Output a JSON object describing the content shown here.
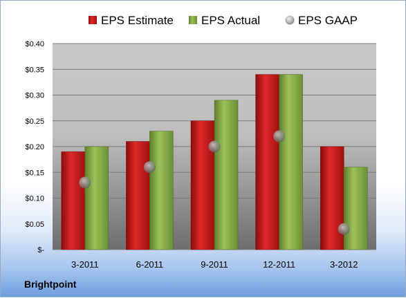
{
  "company": "Brightpoint",
  "chart_data": {
    "type": "bar",
    "categories": [
      "3-2011",
      "6-2011",
      "9-2011",
      "12-2011",
      "3-2012"
    ],
    "series": [
      {
        "name": "EPS Estimate",
        "type": "bar",
        "color": "#d42020",
        "values": [
          0.19,
          0.21,
          0.25,
          0.34,
          0.2
        ]
      },
      {
        "name": "EPS Actual",
        "type": "bar",
        "color": "#8db050",
        "values": [
          0.2,
          0.23,
          0.29,
          0.34,
          0.16
        ]
      },
      {
        "name": "EPS GAAP",
        "type": "scatter",
        "color": "#a0a0a0",
        "values": [
          0.13,
          0.16,
          0.2,
          0.22,
          0.04
        ]
      }
    ],
    "ylim": [
      0,
      0.4
    ],
    "yticks": [
      {
        "value": 0.4,
        "label": "$0.40"
      },
      {
        "value": 0.35,
        "label": "$0.35"
      },
      {
        "value": 0.3,
        "label": "$0.30"
      },
      {
        "value": 0.25,
        "label": "$0.25"
      },
      {
        "value": 0.2,
        "label": "$0.20"
      },
      {
        "value": 0.15,
        "label": "$0.15"
      },
      {
        "value": 0.1,
        "label": "$0.10"
      },
      {
        "value": 0.05,
        "label": "$0.05"
      },
      {
        "value": 0.0,
        "label": "$-"
      }
    ],
    "grid": true,
    "legend_position": "top"
  }
}
